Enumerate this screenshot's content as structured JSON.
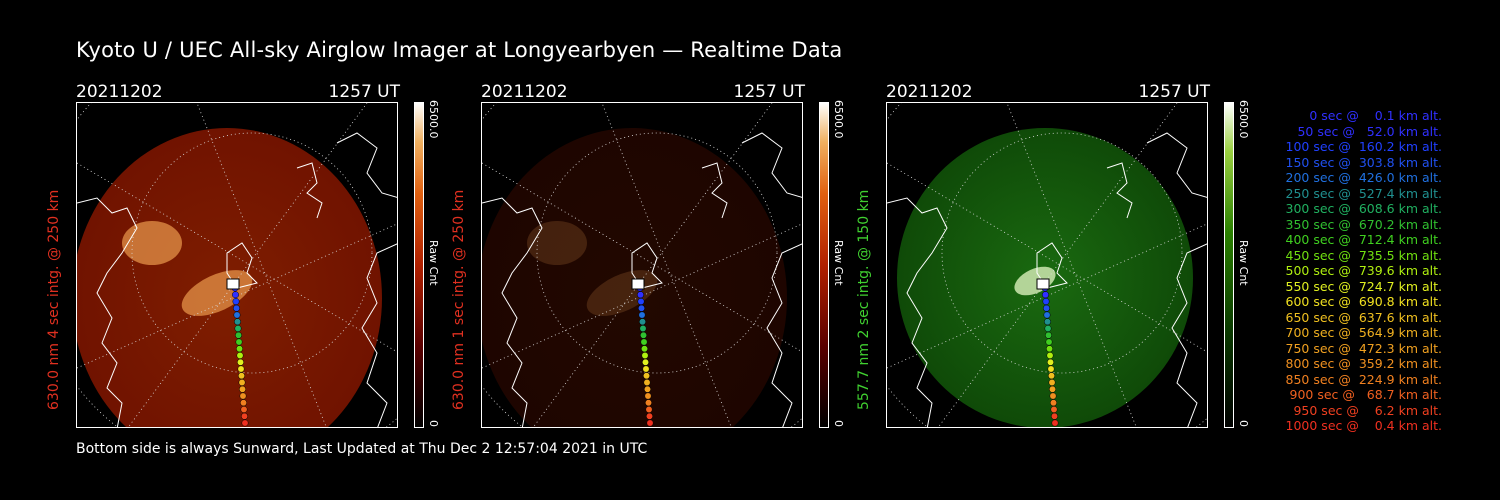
{
  "title": "Kyoto U / UEC All-sky Airglow Imager at Longyearbyen — Realtime Data",
  "footer": "Bottom side is always Sunward, Last Updated at Thu Dec  2 12:57:04 2021 in UTC",
  "panels": [
    {
      "date": "20211202",
      "time": "1257 UT",
      "ylabel": "630.0 nm 4 sec intg. @ 250 km",
      "label_color": "#e03020",
      "cbar_max": "6500.0",
      "cbar_unit": "Raw Cnt",
      "cbar_min": "0",
      "colormap": "red-hot",
      "emission_level": 0.75
    },
    {
      "date": "20211202",
      "time": "1257 UT",
      "ylabel": "630.0 nm 1 sec intg. @ 250 km",
      "label_color": "#e03020",
      "cbar_max": "6500.0",
      "cbar_unit": "Raw Cnt",
      "cbar_min": "0",
      "colormap": "red-hot",
      "emission_level": 0.2
    },
    {
      "date": "20211202",
      "time": "1257 UT",
      "ylabel": "557.7 nm 2 sec intg. @ 150 km",
      "label_color": "#40d030",
      "cbar_max": "6500.0",
      "cbar_unit": "Raw Cnt",
      "cbar_min": "0",
      "colormap": "green",
      "emission_level": 0.5
    }
  ],
  "legend": [
    {
      "text": "   0 sec @    0.1 km alt.",
      "color": "#3030ff"
    },
    {
      "text": "  50 sec @   52.0 km alt.",
      "color": "#3030ff"
    },
    {
      "text": " 100 sec @  160.2 km alt.",
      "color": "#2040ff"
    },
    {
      "text": " 150 sec @  303.8 km alt.",
      "color": "#2050f0"
    },
    {
      "text": " 200 sec @  426.0 km alt.",
      "color": "#2070e0"
    },
    {
      "text": " 250 sec @  527.4 km alt.",
      "color": "#209090"
    },
    {
      "text": " 300 sec @  608.6 km alt.",
      "color": "#20b060"
    },
    {
      "text": " 350 sec @  670.2 km alt.",
      "color": "#30c030"
    },
    {
      "text": " 400 sec @  712.4 km alt.",
      "color": "#40d020"
    },
    {
      "text": " 450 sec @  735.5 km alt.",
      "color": "#70e010"
    },
    {
      "text": " 500 sec @  739.6 km alt.",
      "color": "#b0f010"
    },
    {
      "text": " 550 sec @  724.7 km alt.",
      "color": "#e0f020"
    },
    {
      "text": " 600 sec @  690.8 km alt.",
      "color": "#f0e020"
    },
    {
      "text": " 650 sec @  637.6 km alt.",
      "color": "#f0c020"
    },
    {
      "text": " 700 sec @  564.9 km alt.",
      "color": "#f0b020"
    },
    {
      "text": " 750 sec @  472.3 km alt.",
      "color": "#f0a020"
    },
    {
      "text": " 800 sec @  359.2 km alt.",
      "color": "#f09020"
    },
    {
      "text": " 850 sec @  224.9 km alt.",
      "color": "#f08020"
    },
    {
      "text": " 900 sec @   68.7 km alt.",
      "color": "#f06020"
    },
    {
      "text": " 950 sec @    6.2 km alt.",
      "color": "#f04020"
    },
    {
      "text": "1000 sec @    0.4 km alt.",
      "color": "#f03020"
    }
  ]
}
